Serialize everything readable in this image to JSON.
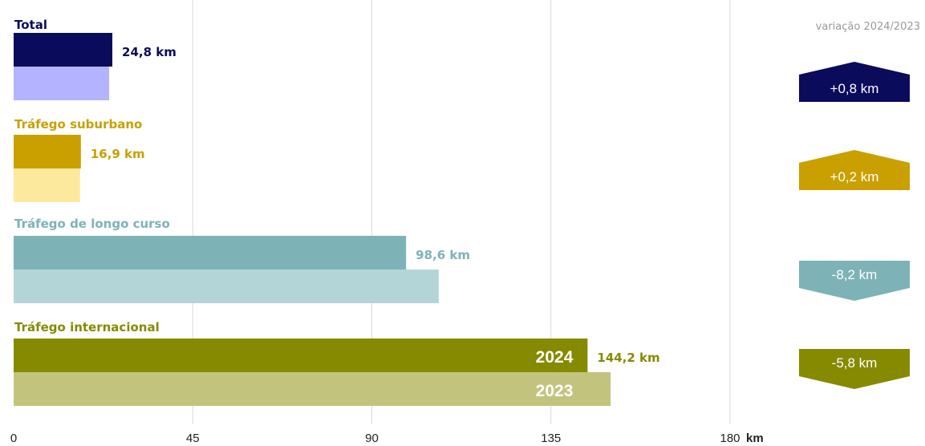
{
  "chart_data": {
    "type": "bar",
    "orientation": "horizontal",
    "unit": "km",
    "xlim": [
      0,
      180
    ],
    "ticks": [
      "0",
      "45",
      "90",
      "135",
      "180"
    ],
    "grid": true,
    "year_labels": [
      "2024",
      "2023"
    ],
    "variation_title": "variação 2024/2023",
    "categories": [
      {
        "name": "Total",
        "value_2024": 24.8,
        "value_2023": 24.0,
        "value_label": "24,8 km",
        "variation": 0.8,
        "variation_label": "+0,8 km",
        "colors": {
          "dark": "#0b0b5c",
          "light": "#b3b3ff",
          "label": "#0b0b5c"
        }
      },
      {
        "name": "Tráfego suburbano",
        "value_2024": 16.9,
        "value_2023": 16.7,
        "value_label": "16,9 km",
        "variation": 0.2,
        "variation_label": "+0,2 km",
        "colors": {
          "dark": "#c9a000",
          "light": "#fde99e",
          "label": "#c9a000"
        }
      },
      {
        "name": "Tráfego de longo curso",
        "value_2024": 98.6,
        "value_2023": 106.8,
        "value_label": "98,6 km",
        "variation": -8.2,
        "variation_label": "-8,2 km",
        "colors": {
          "dark": "#7db3b7",
          "light": "#b4d5d7",
          "label": "#7db3b7"
        }
      },
      {
        "name": "Tráfego internacional",
        "value_2024": 144.2,
        "value_2023": 150.0,
        "value_label": "144,2 km",
        "variation": -5.8,
        "variation_label": "-5,8 km",
        "colors": {
          "dark": "#868a00",
          "light": "#c2c47e",
          "label": "#868a00"
        }
      }
    ]
  }
}
